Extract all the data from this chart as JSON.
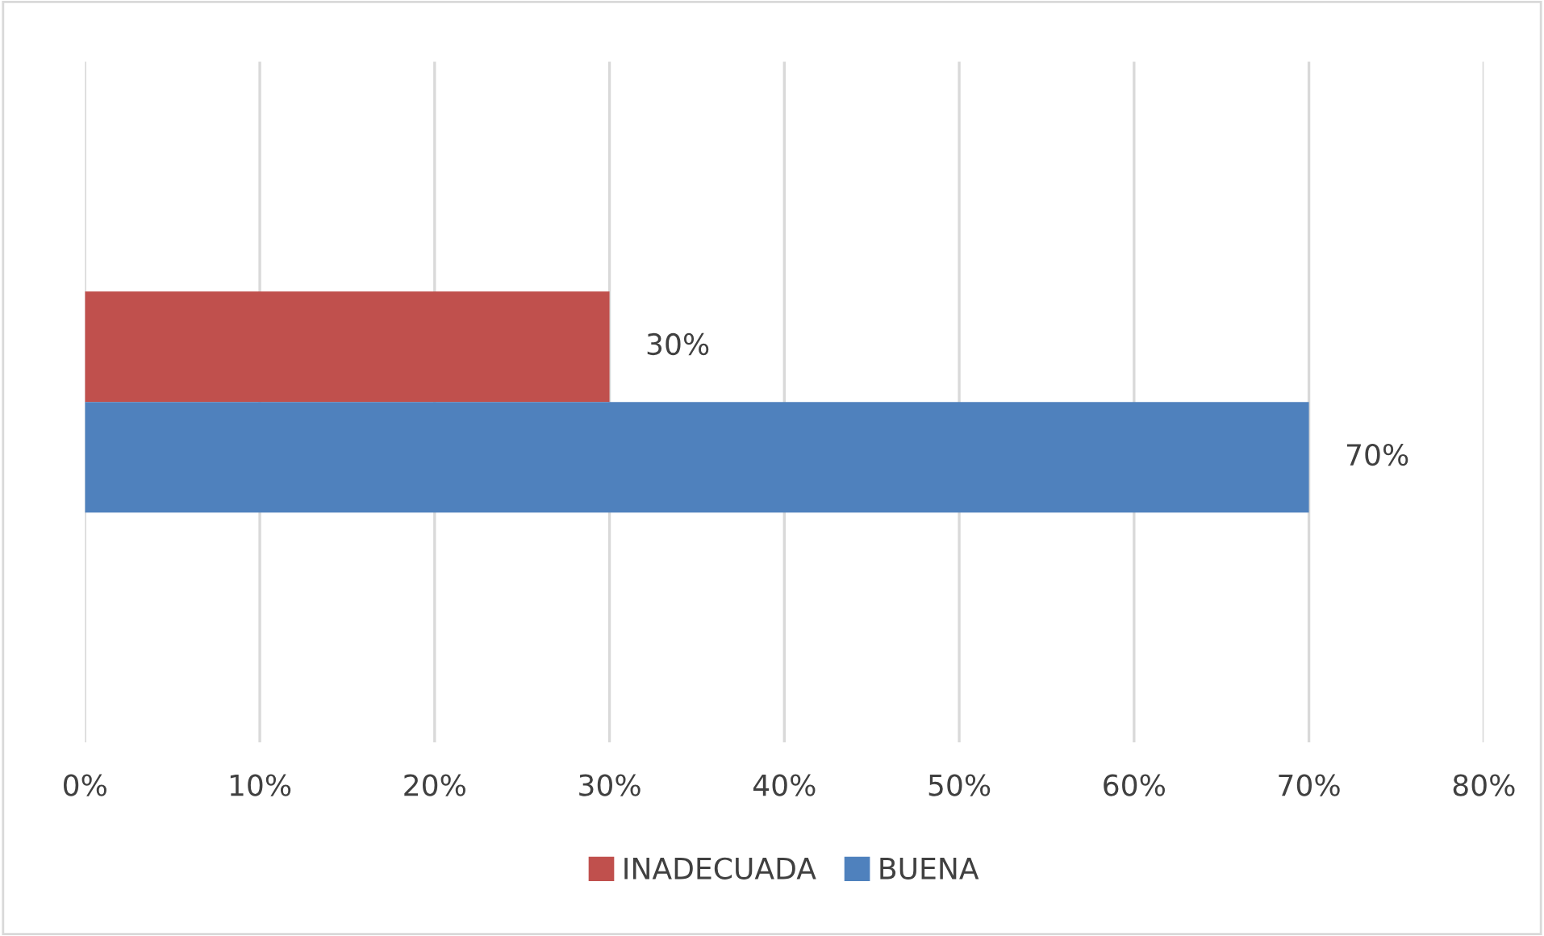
{
  "chart_data": {
    "type": "bar",
    "orientation": "horizontal",
    "categories": [
      null
    ],
    "series": [
      {
        "name": "INADECUADA",
        "color": "#c0504d",
        "values": [
          30
        ],
        "value_labels": [
          "30%"
        ]
      },
      {
        "name": "BUENA",
        "color": "#4f81bd",
        "values": [
          70
        ],
        "value_labels": [
          "70%"
        ]
      }
    ],
    "xlim": [
      0,
      80
    ],
    "xticks": [
      {
        "value": 0,
        "label": "0%"
      },
      {
        "value": 10,
        "label": "10%"
      },
      {
        "value": 20,
        "label": "20%"
      },
      {
        "value": 30,
        "label": "30%"
      },
      {
        "value": 40,
        "label": "40%"
      },
      {
        "value": 50,
        "label": "50%"
      },
      {
        "value": 60,
        "label": "60%"
      },
      {
        "value": 70,
        "label": "70%"
      },
      {
        "value": 80,
        "label": "80%"
      }
    ],
    "grid": "x",
    "legend": "bottom",
    "tick_labels": "x"
  }
}
